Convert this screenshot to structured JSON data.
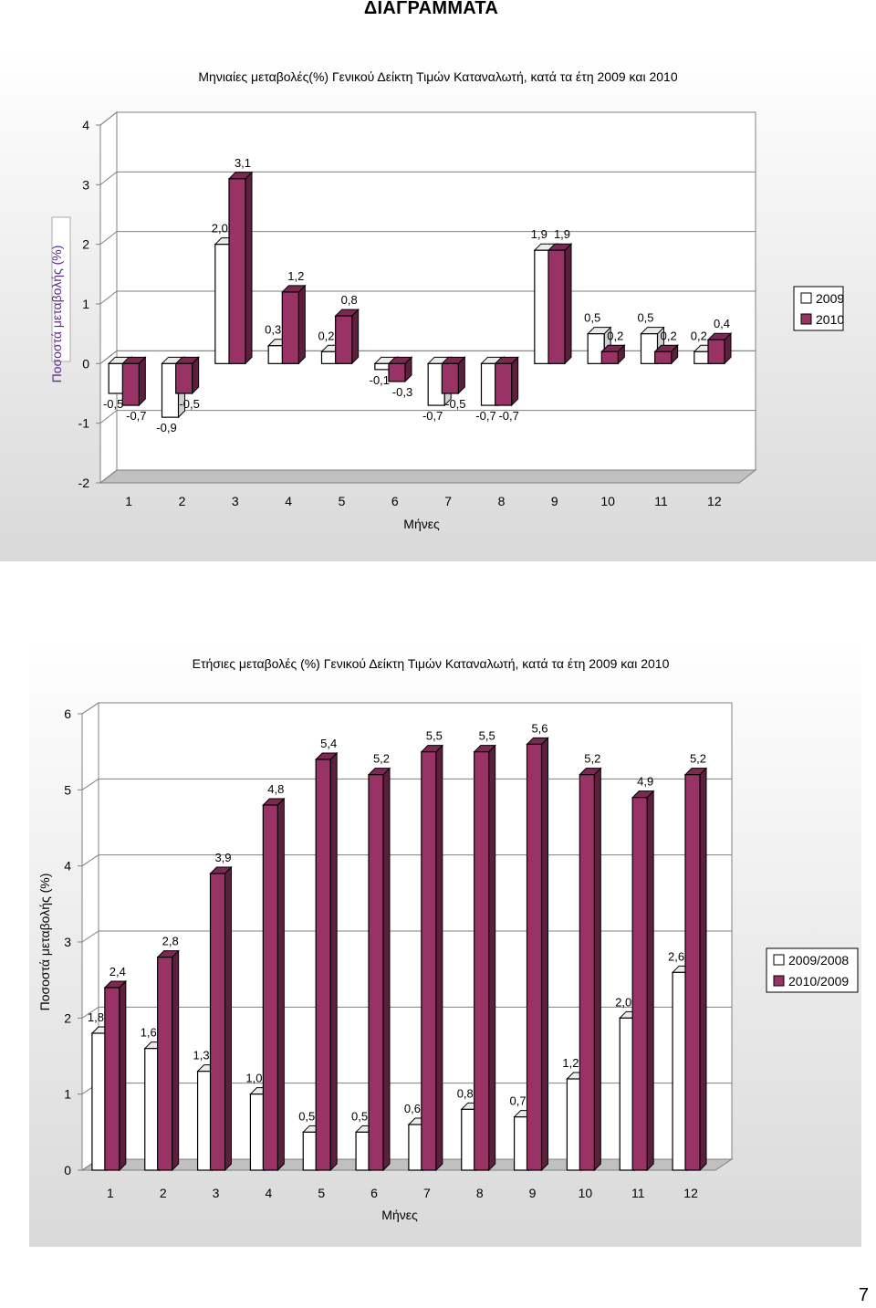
{
  "page_title": "ΔΙΑΓΡΑΜΜΑΤΑ",
  "page_number": "7",
  "colors": {
    "series_a": "#ffffff",
    "series_b": "#993366",
    "stroke": "#000000"
  },
  "chart_data": [
    {
      "type": "bar",
      "title": "Μηνιαίες μεταβολές(%) Γενικού Δείκτη Τιμών Καταναλωτή, κατά τα έτη 2009 και 2010",
      "xlabel": "Μήνες",
      "ylabel": "Ποσοστά μεταβολής (%)",
      "ylim": [
        -2,
        4
      ],
      "yticks": [
        "-2",
        "-1",
        "0",
        "1",
        "2",
        "3",
        "4"
      ],
      "grid": true,
      "legend_position": "right",
      "categories": [
        "1",
        "2",
        "3",
        "4",
        "5",
        "6",
        "7",
        "8",
        "9",
        "10",
        "11",
        "12"
      ],
      "series": [
        {
          "name": "2009",
          "values": [
            -0.5,
            -0.9,
            2.0,
            0.3,
            0.2,
            -0.1,
            -0.7,
            -0.7,
            1.9,
            0.5,
            0.5,
            0.2
          ],
          "labels": [
            "-0,5",
            "-0,9",
            "2,0",
            "0,3",
            "0,2",
            "-0,1",
            "-0,7",
            "-0,7",
            "1,9",
            "0,5",
            "0,5",
            "0,2"
          ]
        },
        {
          "name": "2010",
          "values": [
            -0.7,
            -0.5,
            3.1,
            1.2,
            0.8,
            -0.3,
            -0.5,
            -0.7,
            1.9,
            0.2,
            0.2,
            0.4
          ],
          "labels": [
            "-0,7",
            "-0,5",
            "3,1",
            "1,2",
            "0,8",
            "-0,3",
            "-0,5",
            "-0,7",
            "1,9",
            "0,2",
            "0,2",
            "0,4"
          ]
        }
      ]
    },
    {
      "type": "bar",
      "title": "Ετήσιες μεταβολές (%) Γενικού Δείκτη Τιμών Καταναλωτή, κατά τα έτη 2009 και 2010",
      "xlabel": "Μήνες",
      "ylabel": "Ποσοστά μεταβολής (%)",
      "ylim": [
        0,
        6
      ],
      "yticks": [
        "0",
        "1",
        "2",
        "3",
        "4",
        "5",
        "6"
      ],
      "grid": true,
      "legend_position": "right",
      "categories": [
        "1",
        "2",
        "3",
        "4",
        "5",
        "6",
        "7",
        "8",
        "9",
        "10",
        "11",
        "12"
      ],
      "series": [
        {
          "name": "2009/2008",
          "values": [
            1.8,
            1.6,
            1.3,
            1.0,
            0.5,
            0.5,
            0.6,
            0.8,
            0.7,
            1.2,
            2.0,
            2.6
          ],
          "labels": [
            "1,8",
            "1,6",
            "1,3",
            "1,0",
            "0,5",
            "0,5",
            "0,6",
            "0,8",
            "0,7",
            "1,2",
            "2,0",
            "2,6"
          ]
        },
        {
          "name": "2010/2009",
          "values": [
            2.4,
            2.8,
            3.9,
            4.8,
            5.4,
            5.2,
            5.5,
            5.5,
            5.6,
            5.2,
            4.9,
            5.2
          ],
          "labels": [
            "2,4",
            "2,8",
            "3,9",
            "4,8",
            "5,4",
            "5,2",
            "5,5",
            "5,5",
            "5,6",
            "5,2",
            "4,9",
            "5,2"
          ]
        }
      ]
    }
  ]
}
